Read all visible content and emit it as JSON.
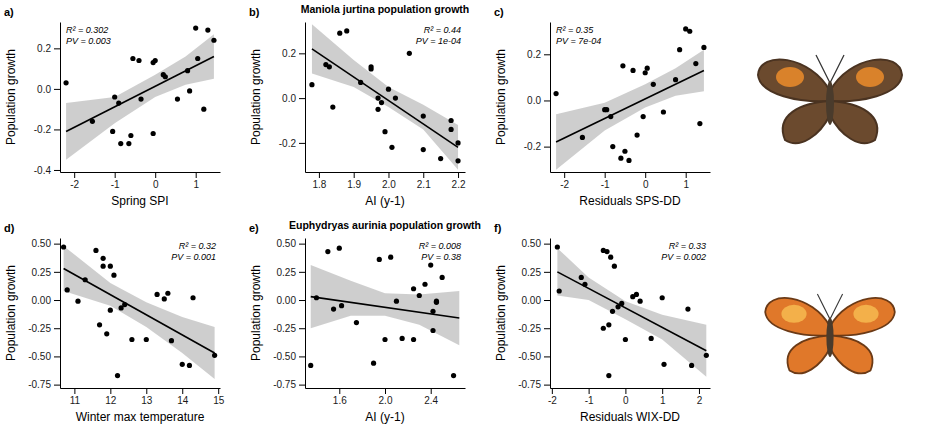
{
  "chart_data": [
    {
      "type": "scatter",
      "panel_label": "a)",
      "x_label": "Spring SPI",
      "y_label": "Population growth",
      "xlim": [
        -2.35,
        1.6
      ],
      "xticks": [
        -2,
        -1,
        0,
        1
      ],
      "ylim": [
        -0.41,
        0.33
      ],
      "yticks": [
        -0.4,
        -0.2,
        {
          "value": 0,
          "label": "0.0"
        },
        0.2
      ],
      "annotations": [
        "R² = 0.302",
        "PV = 0.003"
      ],
      "series": [
        {
          "type": "area",
          "color": "#bebebe",
          "x": [
            -2.2,
            -1,
            0,
            0.75,
            1.45
          ],
          "lower": [
            -0.35,
            -0.17,
            -0.04,
            0.02,
            0.05
          ],
          "upper": [
            -0.07,
            -0.04,
            0.07,
            0.16,
            0.27
          ]
        },
        {
          "type": "line",
          "color": "#000000",
          "x": [
            -2.2,
            1.45
          ],
          "values": [
            -0.21,
            0.16
          ]
        },
        {
          "type": "scatter",
          "color": "#000000",
          "x": [
            -2.2,
            -1.55,
            -1.0,
            -1.05,
            -0.9,
            -0.85,
            -0.65,
            -0.6,
            -0.55,
            -0.4,
            -0.35,
            -0.05,
            0.0,
            -0.05,
            0.2,
            0.25,
            0.55,
            0.8,
            0.85,
            1.0,
            1.05,
            1.2,
            1.3,
            1.45
          ],
          "values": [
            0.03,
            -0.16,
            -0.04,
            -0.21,
            -0.07,
            -0.27,
            -0.27,
            -0.23,
            0.15,
            0.14,
            -0.05,
            0.13,
            0.14,
            -0.22,
            0.07,
            0.06,
            -0.05,
            0.09,
            -0.01,
            0.3,
            0.15,
            -0.1,
            0.29,
            0.24
          ]
        }
      ]
    },
    {
      "type": "scatter",
      "panel_label": "b)",
      "title": "Maniola jurtina population growth",
      "x_label": "AI (y-1)",
      "y_label": "Population growth",
      "xlim": [
        1.76,
        2.22
      ],
      "xticks": [
        1.8,
        1.9,
        {
          "value": 2,
          "label": "2.0"
        },
        2.1,
        2.2
      ],
      "ylim": [
        -0.33,
        0.34
      ],
      "yticks": [
        -0.2,
        {
          "value": 0,
          "label": "0.0"
        },
        0.2
      ],
      "annotations": [
        "R² = 0.44",
        "PV = 1e-04"
      ],
      "series": [
        {
          "type": "area",
          "color": "#bebebe",
          "x": [
            1.78,
            1.9,
            2.0,
            2.1,
            2.2
          ],
          "lower": [
            0.11,
            0.05,
            -0.04,
            -0.14,
            -0.32
          ],
          "upper": [
            0.33,
            0.17,
            0.05,
            -0.03,
            -0.12
          ]
        },
        {
          "type": "line",
          "color": "#000000",
          "x": [
            1.78,
            2.2
          ],
          "values": [
            0.22,
            -0.22
          ]
        },
        {
          "type": "scatter",
          "color": "#000000",
          "x": [
            1.78,
            1.82,
            1.83,
            1.84,
            1.86,
            1.88,
            1.92,
            1.95,
            1.95,
            1.97,
            1.97,
            1.98,
            1.99,
            2.0,
            2.01,
            2.02,
            2.06,
            2.1,
            2.1,
            2.15,
            2.18,
            2.18,
            2.2,
            2.2
          ],
          "values": [
            0.06,
            0.15,
            0.14,
            -0.04,
            0.29,
            0.3,
            0.07,
            0.14,
            0.13,
            0.0,
            -0.05,
            -0.02,
            -0.15,
            0.04,
            -0.22,
            0.0,
            0.2,
            -0.08,
            -0.23,
            -0.27,
            -0.1,
            -0.14,
            -0.2,
            -0.28
          ]
        }
      ]
    },
    {
      "type": "scatter",
      "panel_label": "c)",
      "x_label": "Residuals SPS-DD",
      "y_label": "Population growth",
      "xlim": [
        -2.35,
        1.6
      ],
      "xticks": [
        -2,
        -1,
        0,
        1
      ],
      "ylim": [
        -0.31,
        0.34
      ],
      "yticks": [
        -0.2,
        {
          "value": 0,
          "label": "0.0"
        },
        0.2
      ],
      "annotations": [
        "R² = 0.35",
        "PV = 7e-04"
      ],
      "series": [
        {
          "type": "area",
          "color": "#bebebe",
          "x": [
            -2.2,
            -1,
            0,
            0.75,
            1.45
          ],
          "lower": [
            -0.3,
            -0.13,
            -0.03,
            0.02,
            0.04
          ],
          "upper": [
            -0.06,
            -0.01,
            0.07,
            0.14,
            0.22
          ]
        },
        {
          "type": "line",
          "color": "#000000",
          "x": [
            -2.2,
            1.45
          ],
          "values": [
            -0.18,
            0.13
          ]
        },
        {
          "type": "scatter",
          "color": "#000000",
          "x": [
            -2.2,
            -1.55,
            -1.0,
            -0.95,
            -0.85,
            -0.8,
            -0.6,
            -0.55,
            -0.5,
            -0.4,
            -0.3,
            -0.2,
            0.0,
            0.05,
            -0.05,
            0.2,
            0.45,
            0.75,
            0.85,
            1.0,
            1.1,
            1.25,
            1.35,
            1.45
          ],
          "values": [
            0.03,
            -0.16,
            -0.04,
            -0.04,
            -0.07,
            -0.2,
            -0.25,
            0.15,
            -0.22,
            -0.26,
            0.13,
            -0.15,
            0.12,
            0.14,
            -0.07,
            0.07,
            -0.05,
            0.09,
            0.22,
            0.31,
            0.3,
            0.16,
            -0.1,
            0.23
          ]
        }
      ]
    },
    {
      "type": "scatter",
      "panel_label": "d)",
      "x_label": "Winter max temperature",
      "y_label": "Population growth",
      "xlim": [
        10.6,
        15.05
      ],
      "xticks": [
        11,
        12,
        13,
        14,
        15
      ],
      "ylim": [
        -0.78,
        0.55
      ],
      "yticks": [
        -0.75,
        {
          "value": -0.5,
          "label": "-0.50"
        },
        -0.25,
        {
          "value": 0,
          "label": "0.00"
        },
        0.25,
        {
          "value": 0.5,
          "label": "0.50"
        }
      ],
      "annotations": [
        "R² = 0.32",
        "PV = 0.001"
      ],
      "series": [
        {
          "type": "area",
          "color": "#bebebe",
          "x": [
            10.7,
            12,
            13,
            14,
            14.9
          ],
          "lower": [
            0.08,
            -0.05,
            -0.24,
            -0.47,
            -0.7
          ],
          "upper": [
            0.48,
            0.15,
            -0.02,
            -0.15,
            -0.24
          ]
        },
        {
          "type": "line",
          "color": "#000000",
          "x": [
            10.7,
            14.9
          ],
          "values": [
            0.28,
            -0.47
          ]
        },
        {
          "type": "scatter",
          "color": "#000000",
          "x": [
            10.7,
            10.8,
            11.1,
            11.3,
            11.6,
            11.7,
            11.8,
            11.8,
            11.9,
            12.0,
            12.0,
            12.1,
            12.2,
            12.3,
            12.4,
            12.6,
            13.0,
            13.3,
            13.5,
            13.6,
            13.7,
            14.0,
            14.2,
            14.3,
            14.9
          ],
          "values": [
            0.47,
            0.09,
            -0.01,
            0.18,
            0.44,
            -0.22,
            0.37,
            0.3,
            -0.3,
            0.3,
            -0.09,
            0.22,
            -0.67,
            -0.07,
            -0.04,
            -0.35,
            -0.35,
            0.05,
            0.01,
            0.06,
            -0.36,
            -0.57,
            -0.58,
            0.02,
            -0.49
          ]
        }
      ]
    },
    {
      "type": "scatter",
      "panel_label": "e)",
      "title": "Euphydryas aurinia population growth",
      "x_label": "AI (y-1)",
      "y_label": "Population growth",
      "xlim": [
        1.3,
        2.7
      ],
      "xticks": [
        1.6,
        {
          "value": 2,
          "label": "2.0"
        },
        2.4
      ],
      "ylim": [
        -0.78,
        0.55
      ],
      "yticks": [
        -0.75,
        {
          "value": -0.5,
          "label": "-0.50"
        },
        -0.25,
        {
          "value": 0,
          "label": "0.00"
        },
        0.25,
        {
          "value": 0.5,
          "label": "0.50"
        }
      ],
      "annotations": [
        "R² = 0.008",
        "PV = 0.38"
      ],
      "series": [
        {
          "type": "area",
          "color": "#bebebe",
          "x": [
            1.35,
            1.7,
            2.0,
            2.3,
            2.65
          ],
          "lower": [
            -0.25,
            -0.14,
            -0.14,
            -0.22,
            -0.4
          ],
          "upper": [
            0.31,
            0.17,
            0.06,
            0.05,
            0.08
          ]
        },
        {
          "type": "line",
          "color": "#000000",
          "x": [
            1.35,
            2.65
          ],
          "values": [
            0.03,
            -0.16
          ]
        },
        {
          "type": "scatter",
          "color": "#000000",
          "x": [
            1.35,
            1.4,
            1.5,
            1.55,
            1.6,
            1.62,
            1.75,
            1.9,
            1.95,
            2.0,
            2.05,
            2.1,
            2.15,
            2.25,
            2.25,
            2.3,
            2.35,
            2.4,
            2.42,
            2.42,
            2.45,
            2.45,
            2.5,
            2.6
          ],
          "values": [
            -0.58,
            0.02,
            0.43,
            -0.08,
            0.46,
            -0.05,
            -0.2,
            -0.56,
            0.36,
            -0.35,
            0.38,
            -0.01,
            -0.34,
            0.1,
            -0.35,
            0.04,
            0.14,
            0.31,
            -0.1,
            -0.27,
            -0.01,
            -0.02,
            0.2,
            -0.67
          ]
        }
      ]
    },
    {
      "type": "scatter",
      "panel_label": "f)",
      "x_label": "Residuals WIX-DD",
      "y_label": "Population growth",
      "xlim": [
        -2.05,
        2.3
      ],
      "xticks": [
        -2,
        -1,
        0,
        1,
        2
      ],
      "ylim": [
        -0.78,
        0.55
      ],
      "yticks": [
        -0.75,
        {
          "value": -0.5,
          "label": "-0.50"
        },
        -0.25,
        {
          "value": 0,
          "label": "0.00"
        },
        0.25,
        {
          "value": 0.5,
          "label": "0.50"
        }
      ],
      "annotations": [
        "R² = 0.33",
        "PV = 0.002"
      ],
      "series": [
        {
          "type": "area",
          "color": "#bebebe",
          "x": [
            -1.85,
            -1,
            0,
            1,
            2.2
          ],
          "lower": [
            0.04,
            0.0,
            -0.17,
            -0.35,
            -0.68
          ],
          "upper": [
            0.46,
            0.2,
            -0.01,
            -0.13,
            -0.22
          ]
        },
        {
          "type": "line",
          "color": "#000000",
          "x": [
            -1.85,
            2.2
          ],
          "values": [
            0.25,
            -0.45
          ]
        },
        {
          "type": "scatter",
          "color": "#000000",
          "x": [
            -1.85,
            -1.8,
            -1.2,
            -1.1,
            -0.6,
            -0.5,
            -0.45,
            -0.4,
            -0.35,
            -0.3,
            -0.45,
            -0.2,
            -0.1,
            0.0,
            0.2,
            0.3,
            0.4,
            0.7,
            1.0,
            1.05,
            1.7,
            1.8,
            2.2,
            -0.6
          ],
          "values": [
            0.47,
            0.08,
            0.2,
            0.14,
            0.44,
            0.43,
            -0.22,
            0.38,
            -0.1,
            0.3,
            -0.67,
            -0.06,
            -0.03,
            -0.35,
            0.03,
            0.05,
            -0.01,
            -0.34,
            0.02,
            -0.57,
            -0.08,
            -0.58,
            -0.49,
            -0.25
          ]
        }
      ]
    }
  ]
}
